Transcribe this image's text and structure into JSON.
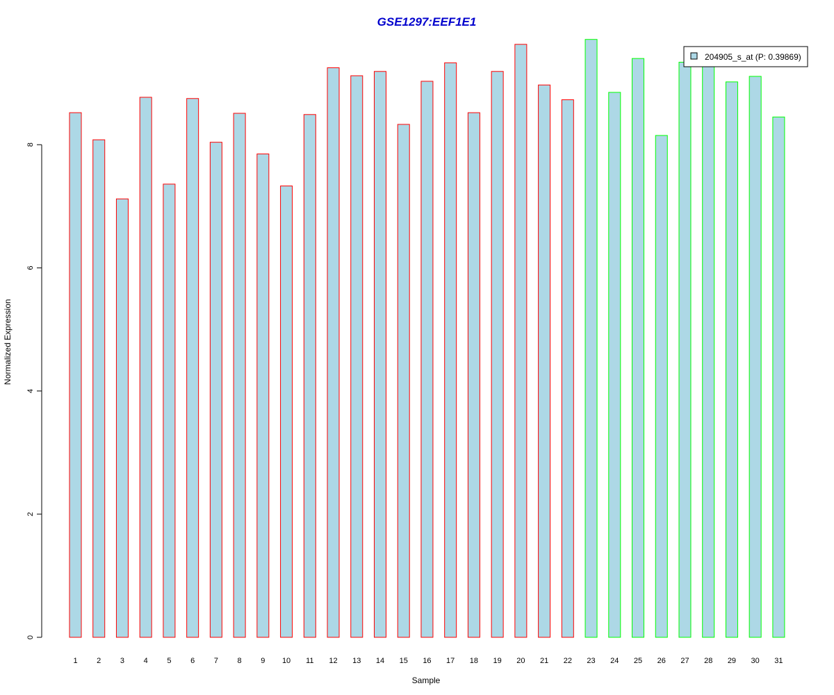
{
  "chart_data": {
    "type": "bar",
    "title": "GSE1297:EEF1E1",
    "xlabel": "Sample",
    "ylabel": "Normalized Expression",
    "ylim": [
      0,
      9.7
    ],
    "yticks": [
      0,
      2,
      4,
      6,
      8
    ],
    "categories": [
      "1",
      "2",
      "3",
      "4",
      "5",
      "6",
      "7",
      "8",
      "9",
      "10",
      "11",
      "12",
      "13",
      "14",
      "15",
      "16",
      "17",
      "18",
      "19",
      "20",
      "21",
      "22",
      "23",
      "24",
      "25",
      "26",
      "27",
      "28",
      "29",
      "30",
      "31"
    ],
    "series": [
      {
        "name": "204905_s_at (P: 0.39869)",
        "values": [
          8.52,
          8.08,
          7.12,
          8.77,
          7.36,
          8.75,
          8.04,
          8.51,
          7.85,
          7.33,
          8.49,
          9.25,
          9.12,
          9.19,
          8.33,
          9.03,
          9.33,
          8.52,
          9.19,
          9.63,
          8.97,
          8.73,
          9.71,
          8.85,
          9.4,
          8.15,
          9.34,
          9.33,
          9.02,
          9.11,
          8.45
        ]
      }
    ],
    "bar_fill": "#add8e6",
    "group_border_colors": [
      "#ff0000",
      "#ff0000",
      "#ff0000",
      "#ff0000",
      "#ff0000",
      "#ff0000",
      "#ff0000",
      "#ff0000",
      "#ff0000",
      "#ff0000",
      "#ff0000",
      "#ff0000",
      "#ff0000",
      "#ff0000",
      "#ff0000",
      "#ff0000",
      "#ff0000",
      "#ff0000",
      "#ff0000",
      "#ff0000",
      "#ff0000",
      "#ff0000",
      "#00ff00",
      "#00ff00",
      "#00ff00",
      "#00ff00",
      "#00ff00",
      "#00ff00",
      "#00ff00",
      "#00ff00",
      "#00ff00"
    ],
    "title_color": "#0000cd",
    "grid": false,
    "legend_position": "top-right"
  }
}
